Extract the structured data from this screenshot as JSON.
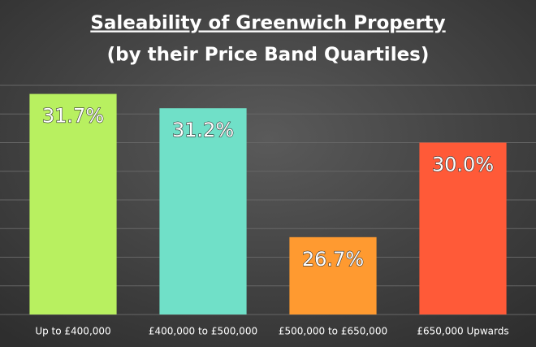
{
  "chart_data": {
    "type": "bar",
    "title": "Saleability of Greenwich Property",
    "subtitle": "(by their Price Band Quartiles)",
    "categories": [
      "Up to £400,000",
      "£400,000 to £500,000",
      "£500,000 to £650,000",
      "£650,000 Upwards"
    ],
    "values": [
      31.7,
      31.2,
      26.7,
      30.0
    ],
    "value_labels": [
      "31.7%",
      "31.2%",
      "26.7%",
      "30.0%"
    ],
    "colors": [
      "#b8f060",
      "#70e0c8",
      "#ff9a30",
      "#ff5a38"
    ],
    "ylim": [
      24,
      32
    ],
    "yticks": [
      24,
      25,
      26,
      27,
      28,
      29,
      30,
      31,
      32
    ],
    "ytick_labels": false,
    "grid": true
  }
}
